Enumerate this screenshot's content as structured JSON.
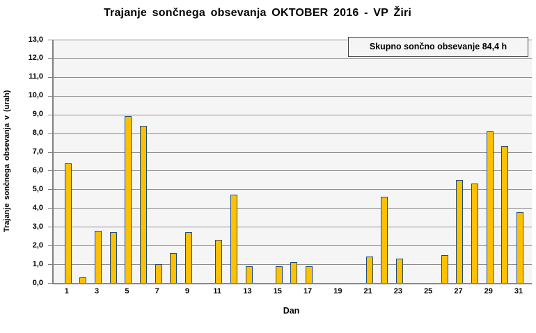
{
  "chart_data": {
    "type": "bar",
    "title": "Trajanje sončnega obsevanja OKTOBER 2016 - VP Žiri",
    "xlabel": "Dan",
    "ylabel": "Trajanje sončnega obsevanja v (urah)",
    "annotation": "Skupno sončno obsevanje 84,4 h",
    "total_hours": "84,4",
    "categories": [
      1,
      2,
      3,
      4,
      5,
      6,
      7,
      8,
      9,
      10,
      11,
      12,
      13,
      14,
      15,
      16,
      17,
      18,
      19,
      20,
      21,
      22,
      23,
      24,
      25,
      26,
      27,
      28,
      29,
      30,
      31
    ],
    "values": [
      6.4,
      0.3,
      2.8,
      2.7,
      8.9,
      8.4,
      1.0,
      1.6,
      2.7,
      0,
      2.3,
      4.7,
      0.9,
      0,
      0.9,
      1.1,
      0.9,
      0,
      0,
      0,
      1.4,
      4.6,
      1.3,
      0,
      0,
      1.5,
      5.5,
      5.3,
      8.1,
      7.3,
      3.8
    ],
    "x_tick_labels": [
      "1",
      "3",
      "5",
      "7",
      "9",
      "11",
      "13",
      "15",
      "17",
      "19",
      "21",
      "23",
      "25",
      "27",
      "29",
      "31"
    ],
    "y_tick_labels": [
      "13,0",
      "12,0",
      "11,0",
      "10,0",
      "9,0",
      "8,0",
      "7,0",
      "6,0",
      "5,0",
      "4,0",
      "3,0",
      "2,0",
      "1,0",
      "0,0"
    ],
    "ylim": [
      0,
      13
    ],
    "y_step": 1.0,
    "grid": true,
    "legend": "none",
    "colors": {
      "bar_fill": "#FFC000",
      "bar_border": "#1F4E79",
      "plot_bg": "#F5F5F5",
      "gridline": "#8C8C8C",
      "axis_line": "#808080",
      "text": "#000000",
      "background": "#FFFFFF"
    }
  }
}
